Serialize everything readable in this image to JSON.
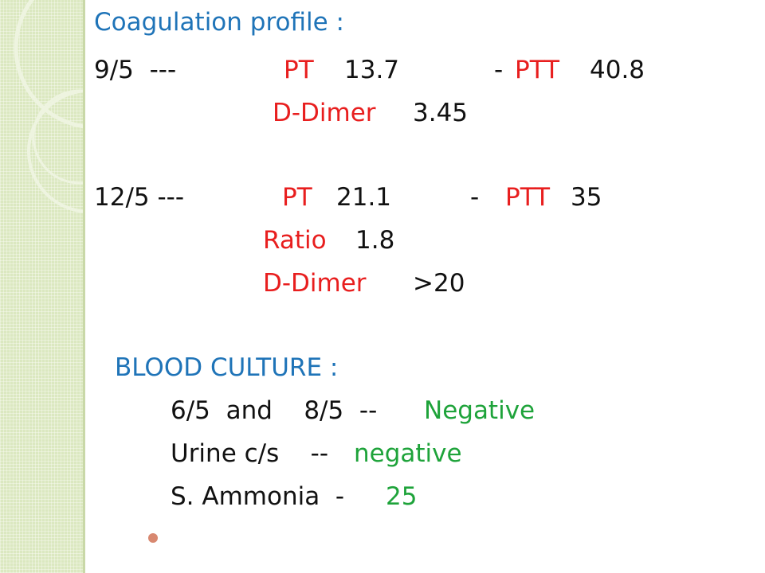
{
  "slide": {
    "coag_title": "Coagulation profile :",
    "row1": {
      "date": "9/5  ---",
      "pt_label": "PT",
      "pt_value": "13.7",
      "dash": "- ",
      "ptt_label": "PTT",
      "ptt_value": "40.8"
    },
    "row1_ddimer": {
      "label": "D-Dimer",
      "value": "3.45"
    },
    "row2": {
      "date": "12/5 ---",
      "pt_label": "PT",
      "pt_value": "21.1",
      "dash": "-",
      "ptt_label": "PTT",
      "ptt_value": "35"
    },
    "row2_ratio": {
      "label": "Ratio",
      "value": "1.8"
    },
    "row2_ddimer": {
      "label": "D-Dimer",
      "value": ">20"
    },
    "culture_title": "BLOOD CULTURE :",
    "culture_line": {
      "text": "6/5  and    8/5  --",
      "result": "Negative"
    },
    "urine_line": {
      "text": "Urine c/s    --",
      "result": "negative"
    },
    "ammonia_line": {
      "text": "S. Ammonia  -",
      "result": "25"
    }
  },
  "colors": {
    "title_blue": "#1f74b8",
    "label_red": "#e81e1e",
    "result_green": "#1ea33a",
    "sidebar_green": "#dbe8c0",
    "bullet": "#d88870"
  }
}
